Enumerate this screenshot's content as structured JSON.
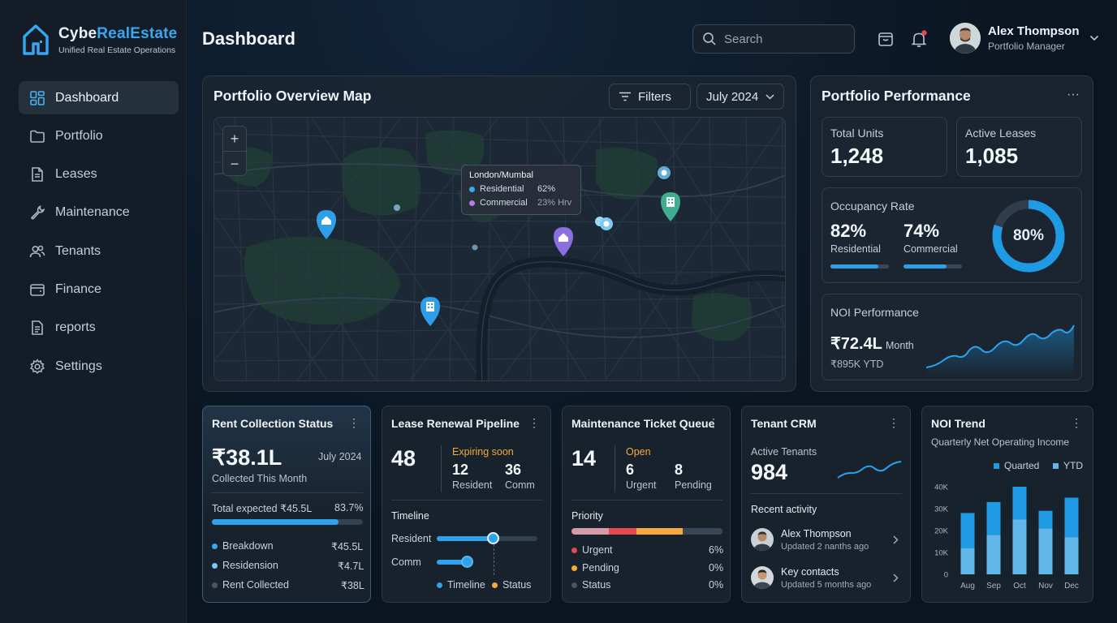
{
  "app": {
    "brand_prefix": "Cybe",
    "brand_suffix": "RealEstate",
    "tagline": "Unified Real Estate Operations",
    "page_title": "Dashboard"
  },
  "nav": [
    {
      "label": "Dashboard",
      "icon": "grid-icon",
      "active": true
    },
    {
      "label": "Portfolio",
      "icon": "folder-icon"
    },
    {
      "label": "Leases",
      "icon": "document-icon"
    },
    {
      "label": "Maintenance",
      "icon": "wrench-icon"
    },
    {
      "label": "Tenants",
      "icon": "users-icon"
    },
    {
      "label": "Finance",
      "icon": "wallet-icon"
    },
    {
      "label": "reports",
      "icon": "report-icon"
    },
    {
      "label": "Settings",
      "icon": "gear-icon"
    }
  ],
  "header": {
    "search_placeholder": "Search",
    "notification_dot_color": "#e5484d",
    "user_name": "Alex Thompson",
    "user_role": "Portfolio Manager"
  },
  "map_panel": {
    "title": "Portfolio Overview Map",
    "filters_label": "Filters",
    "period_label": "July 2024",
    "zoom_in": "+",
    "zoom_out": "−",
    "tooltip": {
      "title": "London/Mumbal",
      "row1_label": "Residential",
      "row1_value": "62%",
      "row2_label": "Commercial",
      "row2_value": "23% Hrv"
    }
  },
  "performance": {
    "title": "Portfolio Performance",
    "menu": "···",
    "total_units_label": "Total Units",
    "total_units_value": "1,248",
    "active_leases_label": "Active Leases",
    "active_leases_value": "1,085",
    "occupancy_label": "Occupancy Rate",
    "residential_value": "82%",
    "residential_label": "Residential",
    "residential_fill": 0.82,
    "commercial_value": "74%",
    "commercial_label": "Commercial",
    "commercial_fill": 0.74,
    "donut_value": "80%",
    "donut_fill": 0.8,
    "noi_label": "NOI Performance",
    "noi_value": "₹72.4L",
    "noi_unit": "Month",
    "noi_ytd": "₹895K YTD"
  },
  "rent": {
    "title": "Rent Collection Status",
    "menu": "⋮",
    "amount": "₹38.1L",
    "period": "July 2024",
    "sub": "Collected This Month",
    "expected_label": "Total expected ₹45.5L",
    "expected_pct": "83.7%",
    "expected_fill": 0.837,
    "rows": [
      {
        "label": "Breakdown",
        "value": "₹45.5L",
        "color": "#38a9f0"
      },
      {
        "label": "Residension",
        "value": "₹4.7L",
        "color": "#7cc6f5"
      },
      {
        "label": "Rent Collected",
        "value": "₹38L",
        "color": "#4a5563"
      }
    ]
  },
  "lease": {
    "title": "Lease Renewal Pipeline",
    "menu": "⋮",
    "total": "48",
    "expiring_label": "Expiring soon",
    "resident_value": "12",
    "resident_label": "Resident",
    "comm_value": "36",
    "comm_label": "Comm",
    "timeline_label": "Timeline",
    "row1": "Resident",
    "row2": "Comm",
    "legend1": "Timeline",
    "legend2": "Status"
  },
  "maintenance": {
    "title": "Maintenance Ticket Queue",
    "menu": "⋮",
    "total": "14",
    "open_label": "Open",
    "urgent_value": "6",
    "urgent_label": "Urgent",
    "pending_value": "8",
    "pending_label": "Pending",
    "priority_label": "Priority",
    "rows": [
      {
        "label": "Urgent",
        "value": "6%",
        "color": "#e5484d"
      },
      {
        "label": "Pending",
        "value": "0%",
        "color": "#f5a93b"
      },
      {
        "label": "Status",
        "value": "0%",
        "color": "#4a5563"
      }
    ]
  },
  "crm": {
    "title": "Tenant CRM",
    "menu": "⋮",
    "active_label": "Active Tenants",
    "active_value": "984",
    "recent_label": "Recent activity",
    "items": [
      {
        "name": "Alex Thompson",
        "sub": "Updated 2 nanths ago"
      },
      {
        "name": "Key contacts",
        "sub": "Updated 5 months ago"
      }
    ]
  },
  "noi_trend": {
    "title": "NOI Trend",
    "menu": "⋮",
    "subtitle": "Quarterly Net Operating Income"
  },
  "chart_data": {
    "type": "bar",
    "categories": [
      "Aug",
      "Sep",
      "Oct",
      "Nov",
      "Dec"
    ],
    "series": [
      {
        "name": "Quarted",
        "color": "#1f9be6",
        "values": [
          12,
          18,
          25,
          21,
          17
        ]
      },
      {
        "name": "YTD",
        "color": "#5fb6ea",
        "values": [
          16,
          15,
          15,
          8,
          18
        ]
      }
    ],
    "stacked": true,
    "yticks": [
      "0",
      "10K",
      "20K",
      "30K",
      "40K"
    ],
    "ylim": [
      0,
      40
    ]
  }
}
